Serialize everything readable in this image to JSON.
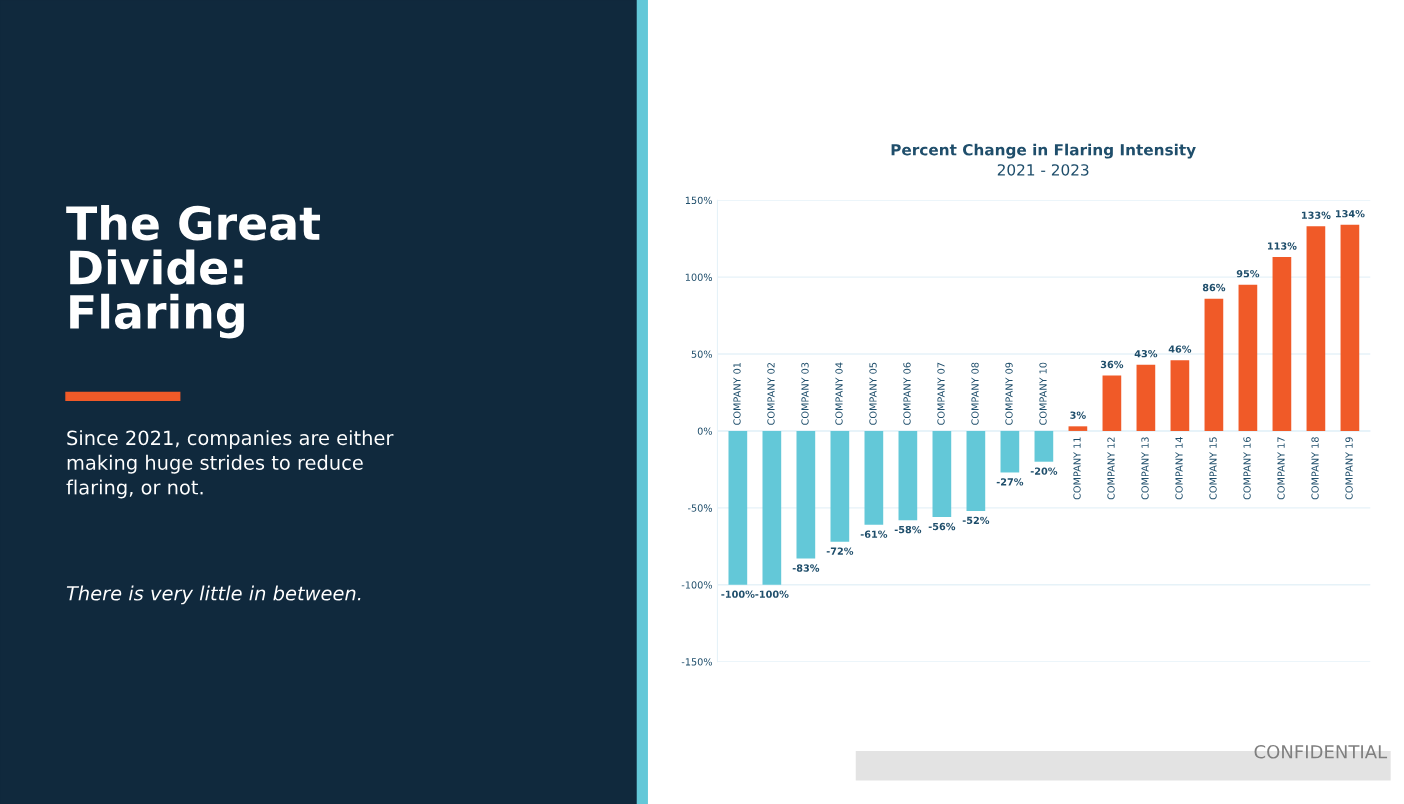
{
  "chart_data": {
    "type": "bar",
    "title": "Percent Change in Flaring Intensity",
    "subtitle": "2021 - 2023",
    "categories": [
      "COMPANY 01",
      "COMPANY 02",
      "COMPANY 03",
      "COMPANY 04",
      "COMPANY 05",
      "COMPANY 06",
      "COMPANY 07",
      "COMPANY 08",
      "COMPANY 09",
      "COMPANY 10",
      "COMPANY 11",
      "COMPANY 12",
      "COMPANY 13",
      "COMPANY 14",
      "COMPANY 15",
      "COMPANY 16",
      "COMPANY 17",
      "COMPANY 18",
      "COMPANY 19"
    ],
    "values": [
      -100,
      -100,
      -83,
      -72,
      -61,
      -58,
      -56,
      -52,
      -27,
      -20,
      3,
      36,
      43,
      46,
      86,
      95,
      113,
      133,
      134
    ],
    "value_labels": [
      "-100%",
      "-100%",
      "-83%",
      "-72%",
      "-61%",
      "-58%",
      "-56%",
      "-52%",
      "-27%",
      "-20%",
      "3%",
      "36%",
      "43%",
      "46%",
      "86%",
      "95%",
      "113%",
      "133%",
      "134%"
    ],
    "colors": [
      "#63c8d8",
      "#63c8d8",
      "#63c8d8",
      "#63c8d8",
      "#63c8d8",
      "#63c8d8",
      "#63c8d8",
      "#63c8d8",
      "#63c8d8",
      "#63c8d8",
      "#f05a28",
      "#f05a28",
      "#f05a28",
      "#f05a28",
      "#f05a28",
      "#f05a28",
      "#f05a28",
      "#f05a28",
      "#f05a28"
    ],
    "ylim": [
      -150,
      150
    ],
    "yticks": [
      {
        "value": -150,
        "label": "-150%"
      },
      {
        "value": -100,
        "label": "-100%"
      },
      {
        "value": -50,
        "label": "-50%"
      },
      {
        "value": 0,
        "label": "0%"
      },
      {
        "value": 50,
        "label": "50%"
      },
      {
        "value": 100,
        "label": "100%"
      },
      {
        "value": 150,
        "label": "150%"
      }
    ],
    "grid": "y",
    "annotations": [
      "The Great\nDivide:\nFlaring",
      "Since 2021, companies are either\nmaking huge strides to reduce\nflaring, or not.",
      "There is very little in between.",
      "CONFIDENTIAL"
    ]
  }
}
